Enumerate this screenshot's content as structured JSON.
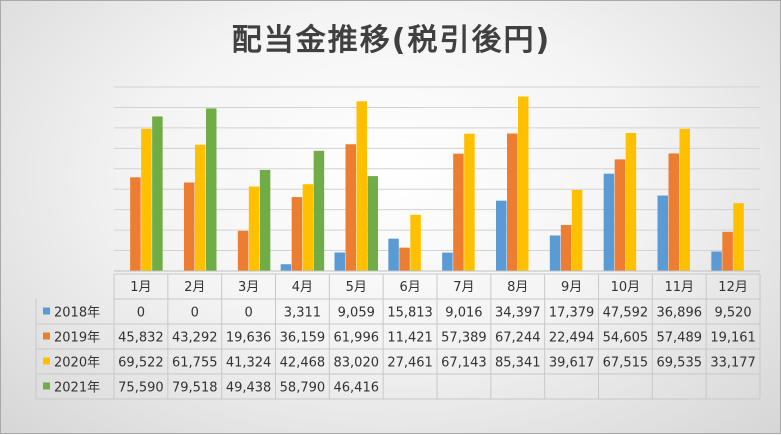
{
  "chart_data": {
    "type": "bar",
    "title": "配当金推移(税引後円)",
    "categories": [
      "1月",
      "2月",
      "3月",
      "4月",
      "5月",
      "6月",
      "7月",
      "8月",
      "9月",
      "10月",
      "11月",
      "12月"
    ],
    "series": [
      {
        "name": "2018年",
        "color": "#5B9BD5",
        "values": [
          0,
          0,
          0,
          3311,
          9059,
          15813,
          9016,
          34397,
          17379,
          47592,
          36896,
          9520
        ],
        "labels": [
          "0",
          "0",
          "0",
          "3,311",
          "9,059",
          "15,813",
          "9,016",
          "34,397",
          "17,379",
          "47,592",
          "36,896",
          "9,520"
        ]
      },
      {
        "name": "2019年",
        "color": "#ED7D31",
        "values": [
          45832,
          43292,
          19636,
          36159,
          61996,
          11421,
          57389,
          67244,
          22494,
          54605,
          57489,
          19161
        ],
        "labels": [
          "45,832",
          "43,292",
          "19,636",
          "36,159",
          "61,996",
          "11,421",
          "57,389",
          "67,244",
          "22,494",
          "54,605",
          "57,489",
          "19,161"
        ]
      },
      {
        "name": "2020年",
        "color": "#FFC000",
        "values": [
          69522,
          61755,
          41324,
          42468,
          83020,
          27461,
          67143,
          85341,
          39617,
          67515,
          69535,
          33177
        ],
        "labels": [
          "69,522",
          "61,755",
          "41,324",
          "42,468",
          "83,020",
          "27,461",
          "67,143",
          "85,341",
          "39,617",
          "67,515",
          "69,535",
          "33,177"
        ]
      },
      {
        "name": "2021年",
        "color": "#70AD47",
        "values": [
          75590,
          79518,
          49438,
          58790,
          46416,
          null,
          null,
          null,
          null,
          null,
          null,
          null
        ],
        "labels": [
          "75,590",
          "79,518",
          "49,438",
          "58,790",
          "46,416",
          "",
          "",
          "",
          "",
          "",
          "",
          ""
        ]
      }
    ],
    "ylim": [
      0,
      90000
    ],
    "grid": true,
    "legend": "data-table"
  }
}
